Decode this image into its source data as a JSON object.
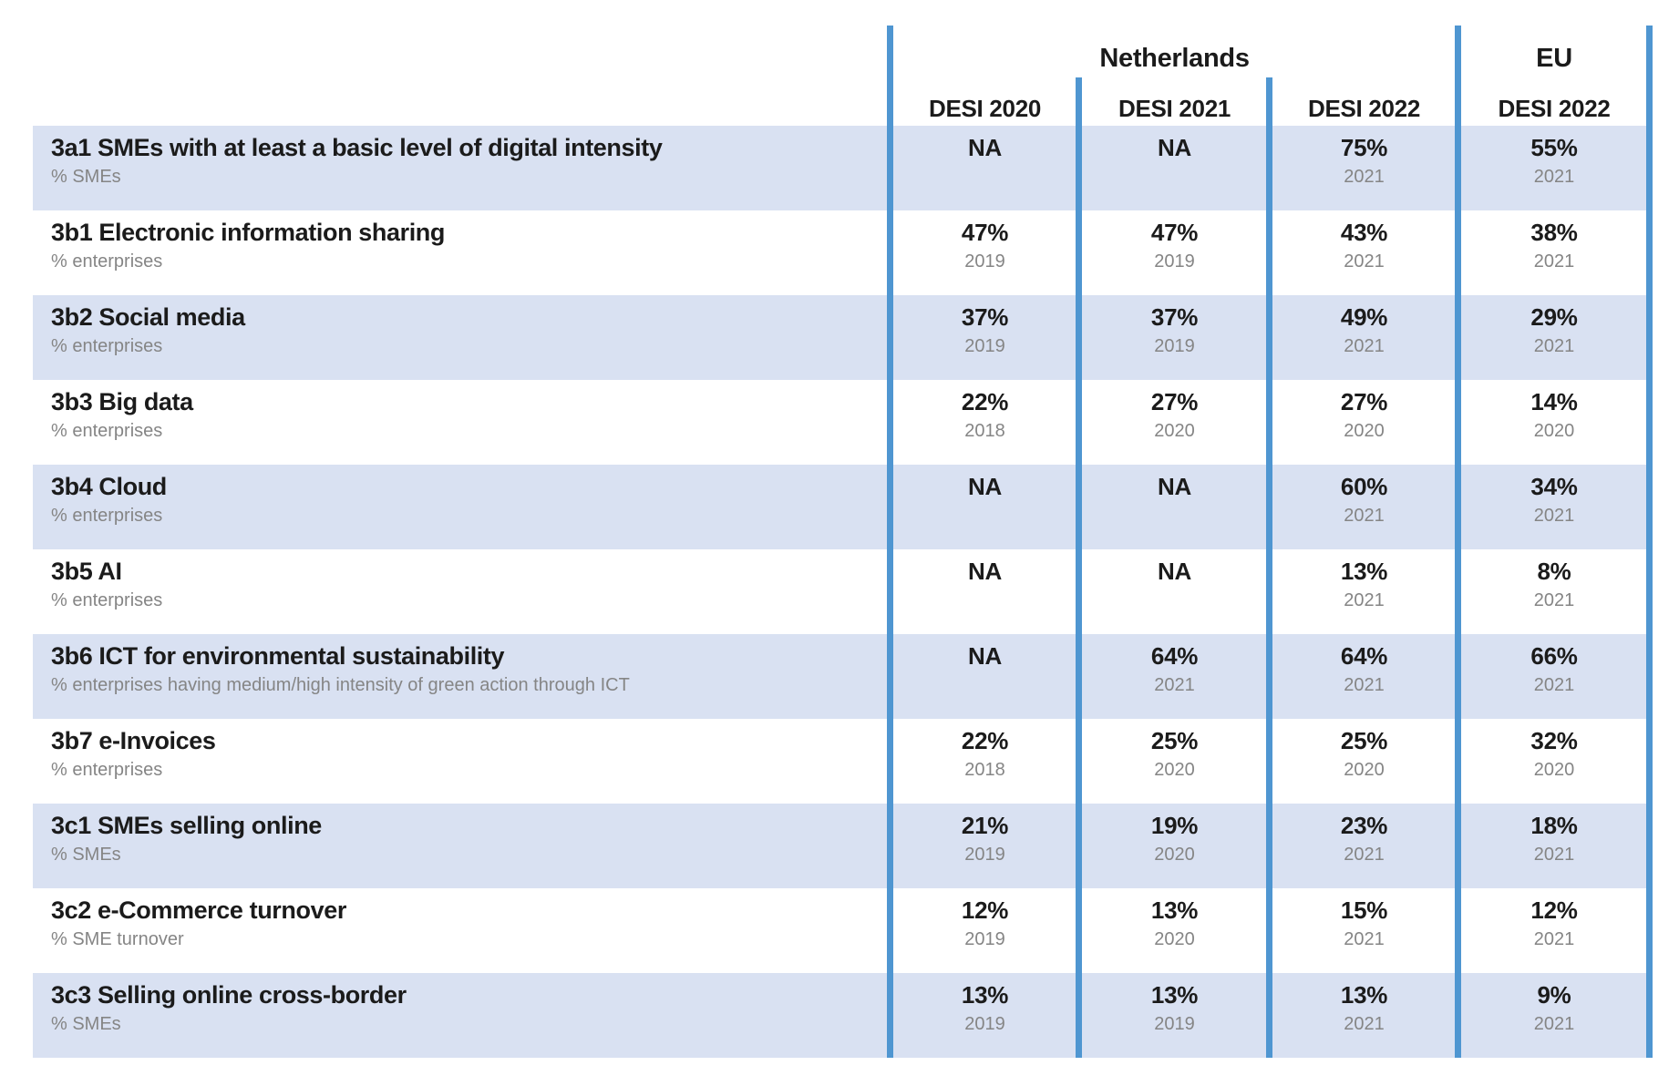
{
  "colors": {
    "row_fill": "#d9e1f2",
    "divider_blue": "#4f96d1",
    "text_dark": "#1b1b1b",
    "text_gray": "#858585"
  },
  "chart_data": {
    "type": "table",
    "group_headers": [
      {
        "label": "Netherlands",
        "span": 3
      },
      {
        "label": "EU",
        "span": 1
      }
    ],
    "columns": [
      "DESI 2020",
      "DESI 2021",
      "DESI 2022",
      "DESI 2022"
    ],
    "rows": [
      {
        "title": "3a1 SMEs with at least a basic level of digital intensity",
        "unit": "% SMEs",
        "cells": [
          {
            "value": "NA",
            "year": ""
          },
          {
            "value": "NA",
            "year": ""
          },
          {
            "value": "75%",
            "year": "2021"
          },
          {
            "value": "55%",
            "year": "2021"
          }
        ]
      },
      {
        "title": "3b1 Electronic information sharing",
        "unit": "% enterprises",
        "cells": [
          {
            "value": "47%",
            "year": "2019"
          },
          {
            "value": "47%",
            "year": "2019"
          },
          {
            "value": "43%",
            "year": "2021"
          },
          {
            "value": "38%",
            "year": "2021"
          }
        ]
      },
      {
        "title": "3b2 Social media",
        "unit": "% enterprises",
        "cells": [
          {
            "value": "37%",
            "year": "2019"
          },
          {
            "value": "37%",
            "year": "2019"
          },
          {
            "value": "49%",
            "year": "2021"
          },
          {
            "value": "29%",
            "year": "2021"
          }
        ]
      },
      {
        "title": "3b3 Big data",
        "unit": "% enterprises",
        "cells": [
          {
            "value": "22%",
            "year": "2018"
          },
          {
            "value": "27%",
            "year": "2020"
          },
          {
            "value": "27%",
            "year": "2020"
          },
          {
            "value": "14%",
            "year": "2020"
          }
        ]
      },
      {
        "title": "3b4 Cloud",
        "unit": "% enterprises",
        "cells": [
          {
            "value": "NA",
            "year": ""
          },
          {
            "value": "NA",
            "year": ""
          },
          {
            "value": "60%",
            "year": "2021"
          },
          {
            "value": "34%",
            "year": "2021"
          }
        ]
      },
      {
        "title": "3b5 AI",
        "unit": "% enterprises",
        "cells": [
          {
            "value": "NA",
            "year": ""
          },
          {
            "value": "NA",
            "year": ""
          },
          {
            "value": "13%",
            "year": "2021"
          },
          {
            "value": "8%",
            "year": "2021"
          }
        ]
      },
      {
        "title": "3b6 ICT for environmental sustainability",
        "unit": "% enterprises having medium/high intensity of green action through ICT",
        "cells": [
          {
            "value": "NA",
            "year": ""
          },
          {
            "value": "64%",
            "year": "2021"
          },
          {
            "value": "64%",
            "year": "2021"
          },
          {
            "value": "66%",
            "year": "2021"
          }
        ]
      },
      {
        "title": "3b7 e-Invoices",
        "unit": "% enterprises",
        "cells": [
          {
            "value": "22%",
            "year": "2018"
          },
          {
            "value": "25%",
            "year": "2020"
          },
          {
            "value": "25%",
            "year": "2020"
          },
          {
            "value": "32%",
            "year": "2020"
          }
        ]
      },
      {
        "title": "3c1 SMEs selling online",
        "unit": "% SMEs",
        "cells": [
          {
            "value": "21%",
            "year": "2019"
          },
          {
            "value": "19%",
            "year": "2020"
          },
          {
            "value": "23%",
            "year": "2021"
          },
          {
            "value": "18%",
            "year": "2021"
          }
        ]
      },
      {
        "title": "3c2 e-Commerce turnover",
        "unit": "% SME turnover",
        "cells": [
          {
            "value": "12%",
            "year": "2019"
          },
          {
            "value": "13%",
            "year": "2020"
          },
          {
            "value": "15%",
            "year": "2021"
          },
          {
            "value": "12%",
            "year": "2021"
          }
        ]
      },
      {
        "title": "3c3 Selling online cross-border",
        "unit": "% SMEs",
        "cells": [
          {
            "value": "13%",
            "year": "2019"
          },
          {
            "value": "13%",
            "year": "2019"
          },
          {
            "value": "13%",
            "year": "2021"
          },
          {
            "value": "9%",
            "year": "2021"
          }
        ]
      }
    ]
  }
}
